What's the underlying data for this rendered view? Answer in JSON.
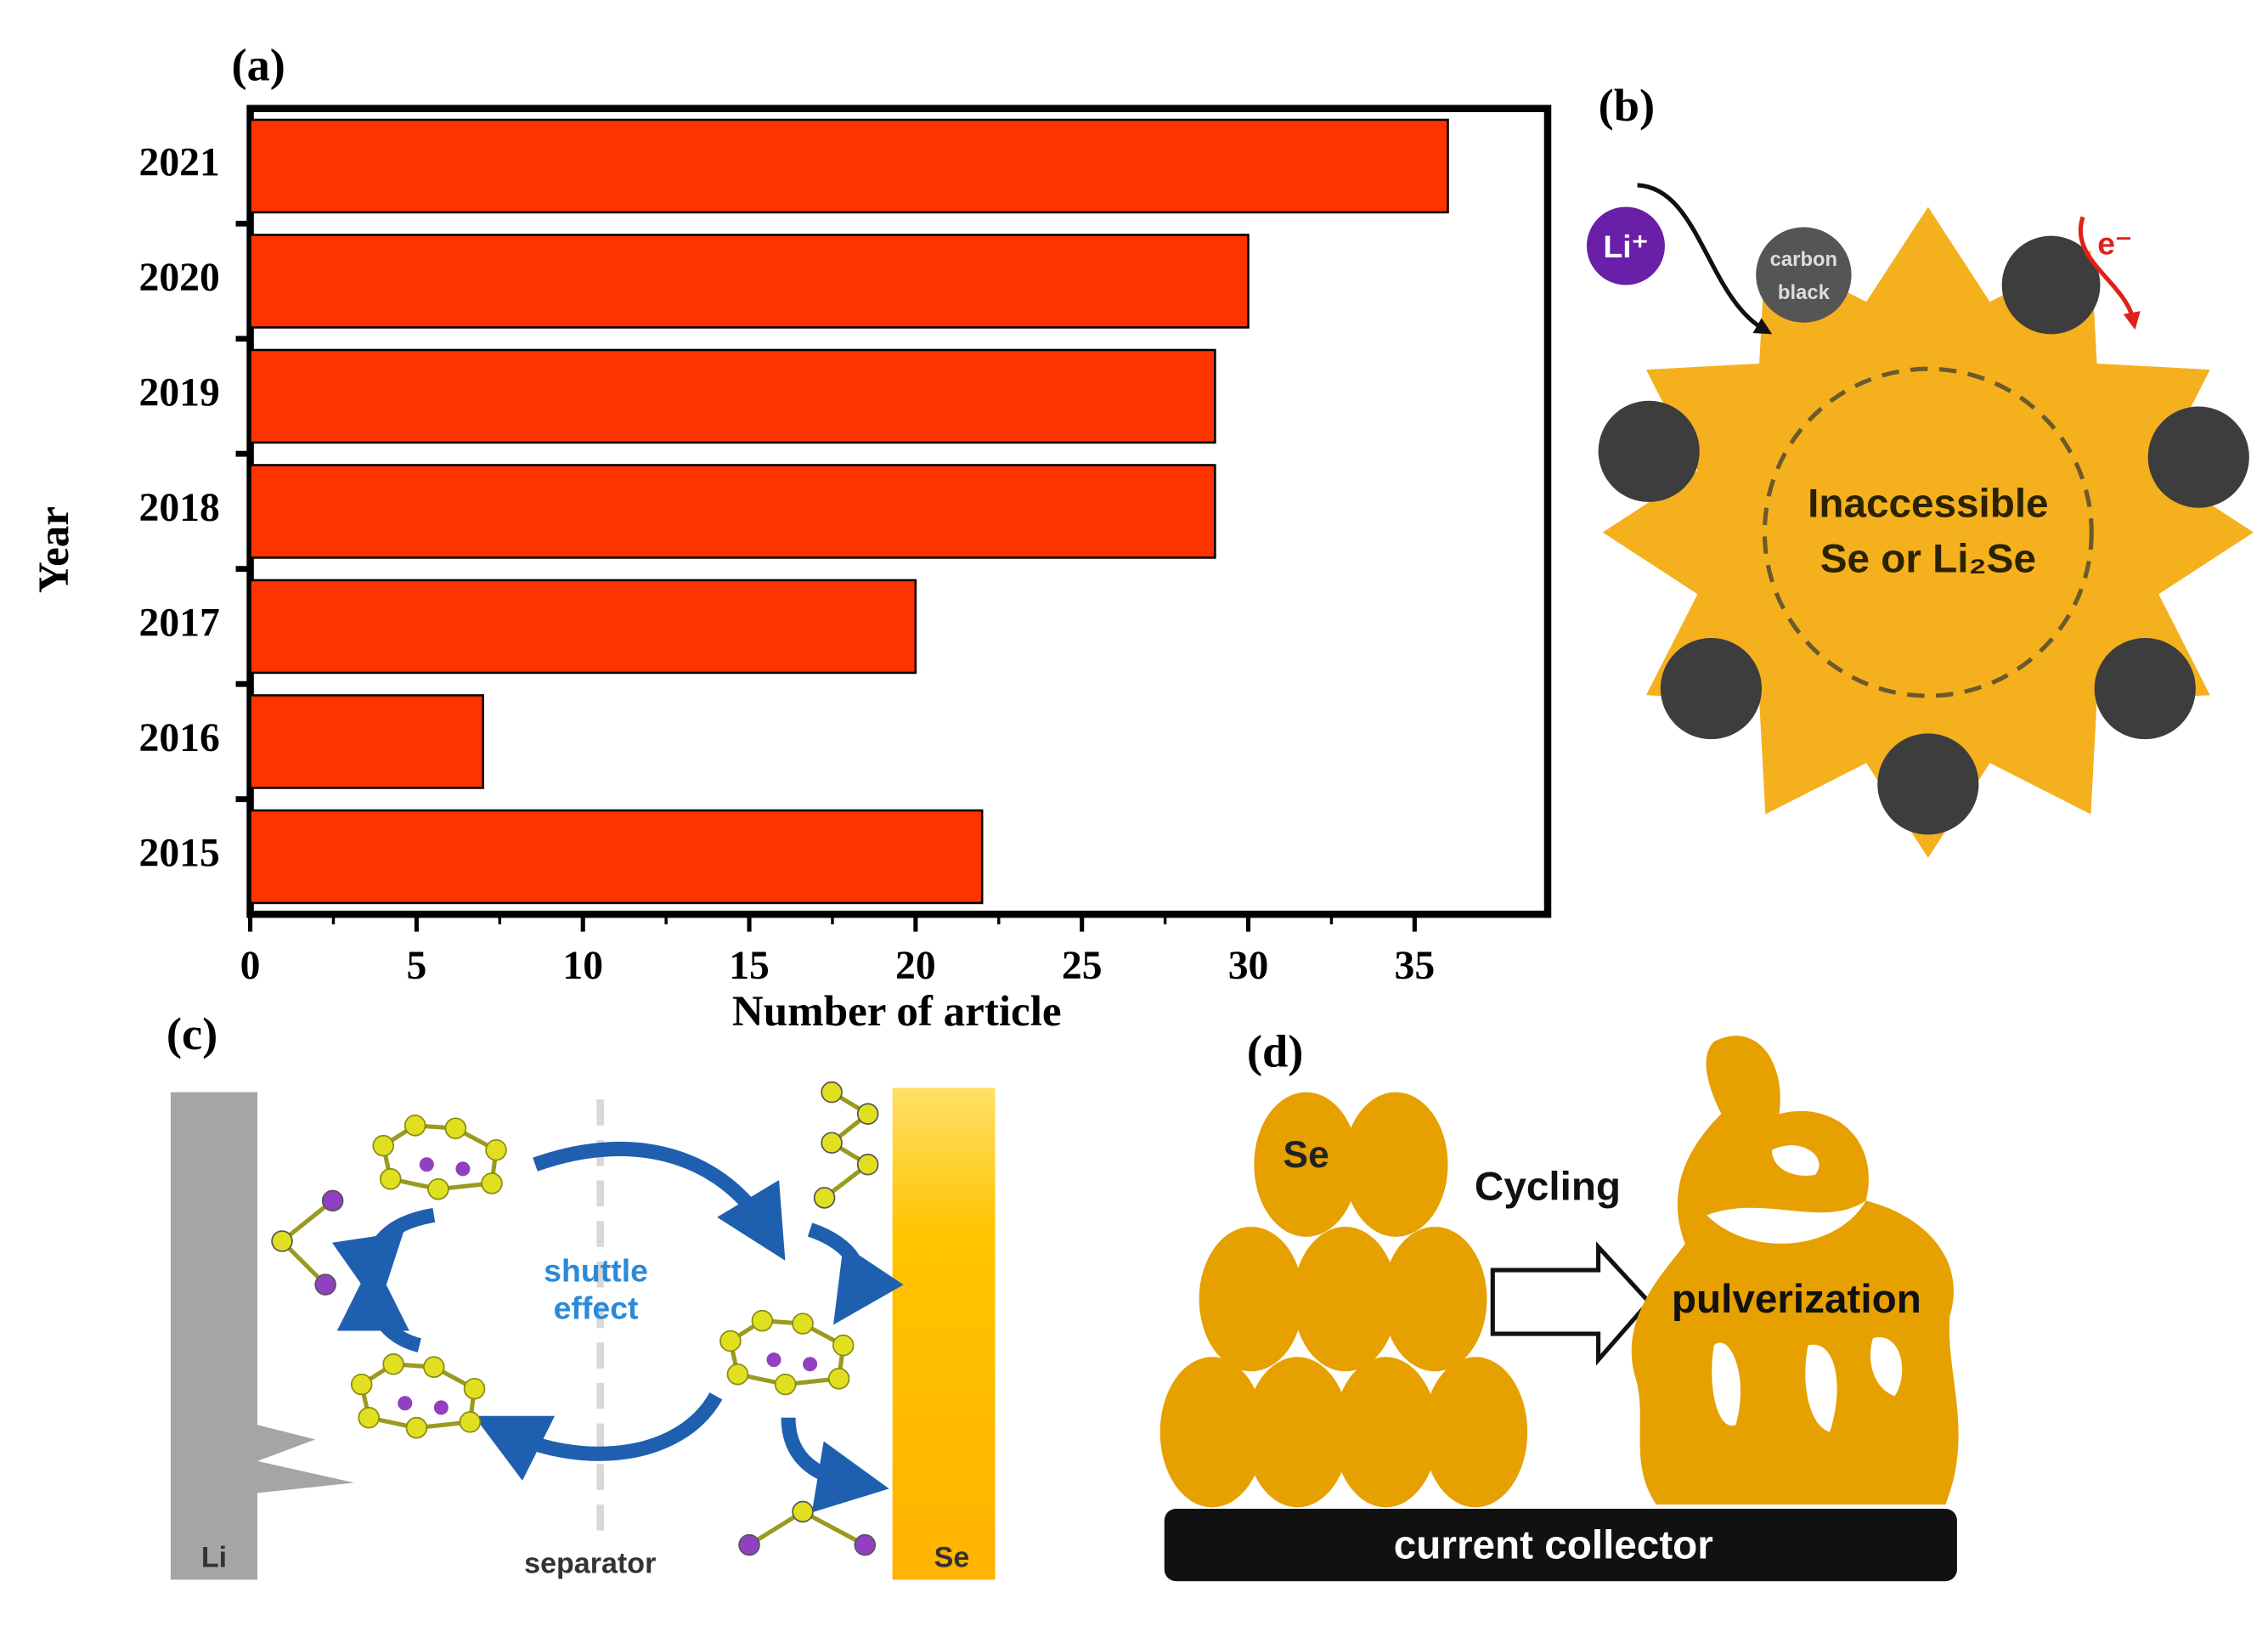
{
  "chart_data": {
    "type": "barh",
    "panel_label": "(a)",
    "categories": [
      "2021",
      "2020",
      "2019",
      "2018",
      "2017",
      "2016",
      "2015"
    ],
    "values": [
      36,
      30,
      29,
      29,
      20,
      7,
      22
    ],
    "color": "#ff3300",
    "xlabel": "Number of article",
    "ylabel": "Year",
    "xlim": [
      0,
      39
    ],
    "xticks": [
      0,
      5,
      10,
      15,
      20,
      25,
      30,
      35
    ]
  },
  "panel_b": {
    "label": "(b)",
    "ion": "Li⁺",
    "electron": "e⁻",
    "carbon_black": [
      "carbon",
      "black"
    ],
    "core": [
      "Inaccessible",
      "Se or Li₂Se"
    ]
  },
  "panel_c": {
    "label": "(c)",
    "anode": "Li",
    "cathode": "Se",
    "separator": "separator",
    "shuttle": [
      "shuttle",
      "effect"
    ]
  },
  "panel_d": {
    "label": "(d)",
    "particle": "Se",
    "process": "Cycling",
    "result": "pulverization",
    "collector": "current collector"
  }
}
